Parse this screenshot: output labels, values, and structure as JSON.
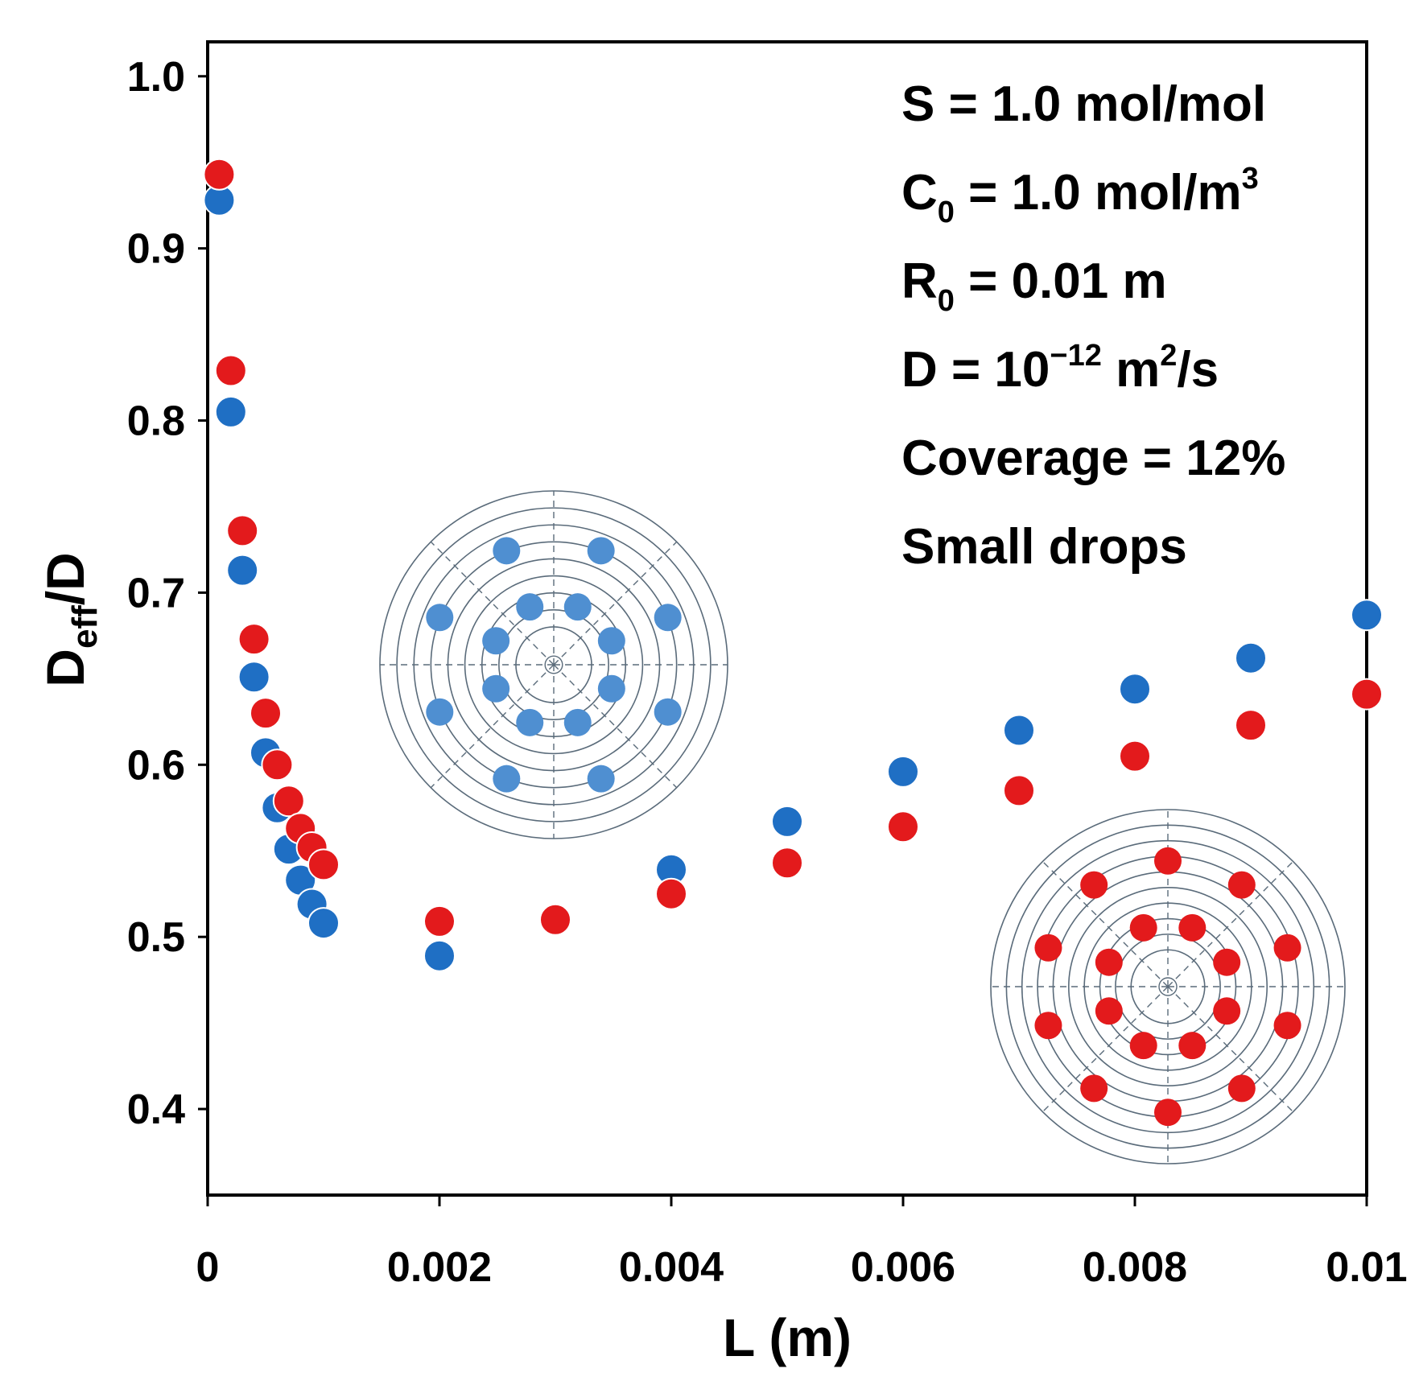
{
  "chart_data": {
    "type": "scatter",
    "title": "",
    "xlabel": "L (m)",
    "ylabel": {
      "main": "D",
      "subscript": "eff",
      "suffix": "/D"
    },
    "xlim": [
      0,
      0.01
    ],
    "ylim": [
      0.35,
      1.02
    ],
    "x_ticks": [
      {
        "value": 0,
        "label": "0"
      },
      {
        "value": 0.002,
        "label": "0.002"
      },
      {
        "value": 0.004,
        "label": "0.004"
      },
      {
        "value": 0.006,
        "label": "0.006"
      },
      {
        "value": 0.008,
        "label": "0.008"
      },
      {
        "value": 0.01,
        "label": "0.01"
      }
    ],
    "y_ticks": [
      {
        "value": 0.4,
        "label": "0.4"
      },
      {
        "value": 0.5,
        "label": "0.5"
      },
      {
        "value": 0.6,
        "label": "0.6"
      },
      {
        "value": 0.7,
        "label": "0.7"
      },
      {
        "value": 0.8,
        "label": "0.8"
      },
      {
        "value": 0.9,
        "label": "0.9"
      },
      {
        "value": 1.0,
        "label": "1.0"
      }
    ],
    "grid": false,
    "legend": null,
    "series": [
      {
        "name": "blue",
        "color": "#1f6fc4",
        "points": [
          [
            0.0001,
            0.928
          ],
          [
            0.0002,
            0.805
          ],
          [
            0.0003,
            0.713
          ],
          [
            0.0004,
            0.651
          ],
          [
            0.0005,
            0.607
          ],
          [
            0.0006,
            0.575
          ],
          [
            0.0007,
            0.551
          ],
          [
            0.0008,
            0.533
          ],
          [
            0.0009,
            0.519
          ],
          [
            0.001,
            0.508
          ],
          [
            0.002,
            0.489
          ],
          [
            0.004,
            0.539
          ],
          [
            0.005,
            0.567
          ],
          [
            0.006,
            0.596
          ],
          [
            0.007,
            0.62
          ],
          [
            0.008,
            0.644
          ],
          [
            0.009,
            0.662
          ],
          [
            0.01,
            0.687
          ]
        ]
      },
      {
        "name": "red",
        "color": "#e31a1c",
        "points": [
          [
            0.0001,
            0.943
          ],
          [
            0.0002,
            0.829
          ],
          [
            0.0003,
            0.736
          ],
          [
            0.0004,
            0.673
          ],
          [
            0.0005,
            0.63
          ],
          [
            0.0006,
            0.6
          ],
          [
            0.0007,
            0.579
          ],
          [
            0.0008,
            0.563
          ],
          [
            0.0009,
            0.552
          ],
          [
            0.001,
            0.542
          ],
          [
            0.002,
            0.509
          ],
          [
            0.003,
            0.51
          ],
          [
            0.004,
            0.525
          ],
          [
            0.005,
            0.543
          ],
          [
            0.006,
            0.564
          ],
          [
            0.007,
            0.585
          ],
          [
            0.008,
            0.605
          ],
          [
            0.009,
            0.623
          ],
          [
            0.01,
            0.641
          ]
        ]
      }
    ],
    "annotations": [
      {
        "id": "s",
        "parts": [
          {
            "t": "S = 1.0 mol/mol"
          }
        ]
      },
      {
        "id": "c0",
        "parts": [
          {
            "t": "C"
          },
          {
            "t": "0",
            "sub": true
          },
          {
            "t": " = 1.0 mol/m"
          },
          {
            "t": "3",
            "sup": true
          }
        ]
      },
      {
        "id": "r0",
        "parts": [
          {
            "t": "R"
          },
          {
            "t": "0",
            "sub": true
          },
          {
            "t": " = 0.01 m"
          }
        ]
      },
      {
        "id": "d",
        "parts": [
          {
            "t": "D = 10"
          },
          {
            "t": "−12",
            "sup": true
          },
          {
            "t": " m"
          },
          {
            "t": "2",
            "sup": true
          },
          {
            "t": "/s"
          }
        ]
      },
      {
        "id": "coverage",
        "parts": [
          {
            "t": "Coverage = 12%"
          }
        ]
      },
      {
        "id": "drops",
        "parts": [
          {
            "t": "Small drops"
          }
        ]
      }
    ],
    "insets": [
      {
        "id": "blue-inset",
        "rings": 9,
        "drop_color": "#4f8fd1",
        "drops": 16
      },
      {
        "id": "red-inset",
        "rings": 10,
        "drop_color": "#e31a1c",
        "drops": 18
      }
    ]
  }
}
